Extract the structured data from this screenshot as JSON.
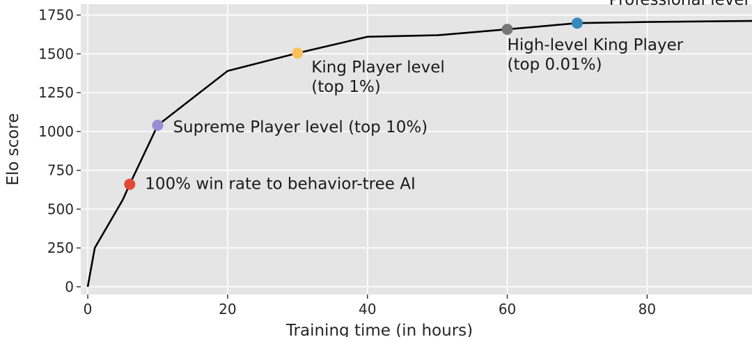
{
  "chart_data": {
    "type": "line",
    "xlabel": "Training time (in hours)",
    "ylabel": "Elo score",
    "xlim": [
      -1,
      95
    ],
    "ylim": [
      -50,
      1820
    ],
    "xticks": [
      0,
      20,
      40,
      60,
      80
    ],
    "yticks": [
      0,
      250,
      500,
      750,
      1000,
      1250,
      1500,
      1750
    ],
    "grid": true,
    "background": "#e5e5e5",
    "grid_color": "#ffffff",
    "line_color": "#000000",
    "series": [
      {
        "x": [
          0,
          1,
          5,
          6,
          10,
          20,
          30,
          40,
          50,
          60,
          70,
          80,
          95
        ],
        "y": [
          0,
          250,
          560,
          660,
          1040,
          1390,
          1505,
          1610,
          1620,
          1658,
          1698,
          1705,
          1712
        ]
      }
    ],
    "milestones": [
      {
        "x": 6,
        "y": 660,
        "color": "#e24a33",
        "lines": [
          "100% win rate to behavior-tree AI"
        ]
      },
      {
        "x": 10,
        "y": 1040,
        "color": "#988ed5",
        "lines": [
          "Supreme Player level (top 10%)"
        ]
      },
      {
        "x": 30,
        "y": 1505,
        "color": "#fbc15e",
        "lines": [
          "King Player level",
          "(top 1%)"
        ]
      },
      {
        "x": 60,
        "y": 1658,
        "color": "#777777",
        "lines": [
          "High-level King Player",
          "(top 0.01%)"
        ]
      },
      {
        "x": 70,
        "y": 1698,
        "color": "#348abd",
        "lines": [
          "Professional level"
        ]
      }
    ]
  }
}
